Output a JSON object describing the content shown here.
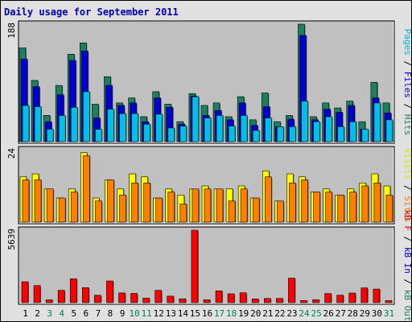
{
  "chart_data": [
    {
      "type": "bar",
      "title": "Daily usage for September 2011",
      "ylabel_parts": [
        {
          "text": "Pages",
          "color": "#00b0d0"
        },
        {
          "text": " / ",
          "color": "#000000"
        },
        {
          "text": "Files",
          "color": "#0000d0"
        },
        {
          "text": " / ",
          "color": "#000000"
        },
        {
          "text": "Hits",
          "color": "#1a8060"
        }
      ],
      "ymax_label": "188",
      "ylim": [
        0,
        188
      ],
      "series": [
        {
          "name": "Hits",
          "color": "#1a8060",
          "values": [
            150,
            98,
            42,
            90,
            140,
            158,
            60,
            104,
            62,
            70,
            40,
            80,
            60,
            32,
            77,
            58,
            62,
            40,
            72,
            35,
            78,
            32,
            42,
            188,
            40,
            62,
            54,
            65,
            32,
            95,
            62
          ]
        },
        {
          "name": "Files",
          "color": "#0000d0",
          "values": [
            132,
            88,
            32,
            75,
            130,
            145,
            38,
            90,
            58,
            62,
            32,
            70,
            55,
            28,
            73,
            42,
            50,
            35,
            62,
            26,
            56,
            24,
            36,
            170,
            35,
            52,
            47,
            58,
            20,
            70,
            46
          ]
        },
        {
          "name": "Pages",
          "color": "#00c0e8",
          "values": [
            58,
            56,
            20,
            42,
            55,
            80,
            20,
            52,
            45,
            45,
            28,
            44,
            22,
            25,
            72,
            38,
            42,
            25,
            42,
            18,
            38,
            24,
            24,
            65,
            32,
            40,
            24,
            32,
            20,
            62,
            35
          ]
        }
      ]
    },
    {
      "type": "bar",
      "ylabel_parts": [
        {
          "text": "Visits",
          "color": "#e0e000"
        },
        {
          "text": " / ",
          "color": "#000000"
        },
        {
          "text": "Sites",
          "color": "#f08000"
        }
      ],
      "ymax_label": "24",
      "ylim": [
        0,
        24
      ],
      "series": [
        {
          "name": "Visits",
          "color": "#ffff00",
          "values": [
            15,
            16,
            11,
            8,
            11,
            23,
            8,
            14,
            11,
            16,
            15,
            8,
            11,
            9,
            11,
            12,
            11,
            11,
            12,
            8,
            17,
            7,
            16,
            15,
            10,
            11,
            9,
            11,
            13,
            16,
            12
          ]
        },
        {
          "name": "Sites",
          "color": "#ff8000",
          "values": [
            14,
            14,
            11,
            8,
            10,
            22,
            7,
            14,
            9,
            13,
            13,
            8,
            10,
            6,
            11,
            11,
            11,
            7,
            11,
            8,
            15,
            7,
            13,
            14,
            10,
            10,
            9,
            10,
            12,
            13,
            9
          ]
        }
      ]
    },
    {
      "type": "bar",
      "ylabel_parts": [
        {
          "text": "kB F",
          "color": "#e00000"
        },
        {
          "text": " / ",
          "color": "#000000"
        },
        {
          "text": "kB In",
          "color": "#0000d0"
        },
        {
          "text": " / ",
          "color": "#000000"
        },
        {
          "text": "kB Out",
          "color": "#1a8060"
        }
      ],
      "ymax_label": "5639",
      "ylim": [
        0,
        5639
      ],
      "series": [
        {
          "name": "kB F",
          "color": "#ff0000",
          "values": [
            1630,
            1330,
            220,
            960,
            1860,
            1170,
            580,
            1690,
            760,
            720,
            360,
            960,
            510,
            300,
            5639,
            220,
            920,
            690,
            770,
            290,
            330,
            330,
            1910,
            170,
            230,
            710,
            580,
            750,
            1150,
            1060,
            160
          ]
        }
      ]
    }
  ],
  "x_labels": [
    "1",
    "2",
    "3",
    "4",
    "5",
    "6",
    "7",
    "8",
    "9",
    "10",
    "11",
    "12",
    "13",
    "14",
    "15",
    "16",
    "17",
    "18",
    "19",
    "20",
    "21",
    "22",
    "23",
    "24",
    "25",
    "26",
    "27",
    "28",
    "29",
    "30",
    "31"
  ],
  "weekend_days": [
    3,
    4,
    10,
    11,
    17,
    18,
    24,
    25,
    31
  ],
  "colors": {
    "weekday": "#000000",
    "weekend": "#00805a",
    "plot_bg": "#c0c0c0",
    "frame_bg": "#e0e0e0",
    "title": "#0000b0"
  }
}
